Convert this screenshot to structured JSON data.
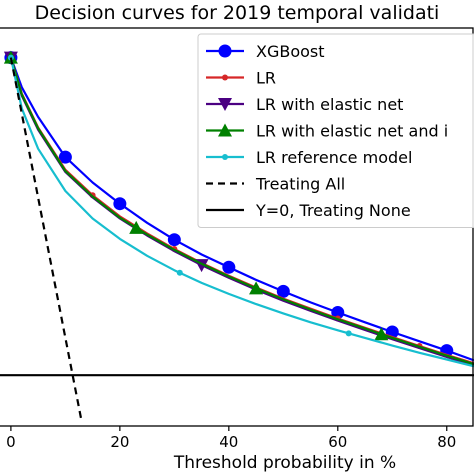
{
  "chart_data": {
    "type": "line",
    "title": "Decision curves for 2019 temporal validati",
    "xlabel": "Threshold probability in %",
    "ylabel": "",
    "xlim": [
      -2,
      85
    ],
    "ylim": [
      -0.012,
      0.082
    ],
    "x_ticks": [
      0,
      20,
      40,
      60,
      80
    ],
    "x_tick_labels": [
      "0",
      "20",
      "40",
      "60",
      "80"
    ],
    "legend_position": "top-right",
    "series": [
      {
        "name": "XGBoost",
        "color": "#0000ff",
        "marker": "circle",
        "marker_x": [
          0,
          10,
          20,
          30,
          40,
          50,
          60,
          70,
          80
        ],
        "x": [
          0,
          2,
          5,
          10,
          15,
          20,
          25,
          30,
          35,
          40,
          45,
          50,
          55,
          60,
          65,
          70,
          75,
          80,
          85
        ],
        "y": [
          0.075,
          0.068,
          0.061,
          0.0515,
          0.0455,
          0.0405,
          0.036,
          0.032,
          0.0285,
          0.0255,
          0.0225,
          0.0198,
          0.0172,
          0.0148,
          0.0125,
          0.0102,
          0.008,
          0.0058,
          0.0035
        ]
      },
      {
        "name": "LR",
        "color": "#d62728",
        "marker": "dot",
        "marker_x": [
          0,
          15,
          30,
          45,
          60,
          75
        ],
        "x": [
          0,
          2,
          5,
          10,
          15,
          20,
          25,
          30,
          35,
          40,
          45,
          50,
          55,
          60,
          65,
          70,
          75,
          80,
          85
        ],
        "y": [
          0.075,
          0.0665,
          0.0585,
          0.0485,
          0.0425,
          0.0375,
          0.0335,
          0.0298,
          0.0265,
          0.0235,
          0.0207,
          0.0181,
          0.0157,
          0.0134,
          0.0112,
          0.009,
          0.0069,
          0.0048,
          0.0028
        ]
      },
      {
        "name": "LR with elastic net",
        "color": "#4b0082",
        "marker": "triangle-down",
        "marker_x": [
          0,
          35
        ],
        "x": [
          0,
          2,
          5,
          10,
          15,
          20,
          25,
          30,
          35,
          40,
          45,
          50,
          55,
          60,
          65,
          70,
          75,
          80,
          85
        ],
        "y": [
          0.075,
          0.066,
          0.058,
          0.048,
          0.042,
          0.037,
          0.033,
          0.0293,
          0.026,
          0.023,
          0.0202,
          0.0176,
          0.0152,
          0.0129,
          0.0107,
          0.0085,
          0.0064,
          0.0043,
          0.0023
        ]
      },
      {
        "name": "LR with elastic net and i",
        "color": "#008000",
        "marker": "triangle-up",
        "marker_x": [
          0,
          23,
          45,
          68
        ],
        "x": [
          0,
          2,
          5,
          10,
          15,
          20,
          25,
          30,
          35,
          40,
          45,
          50,
          55,
          60,
          65,
          70,
          75,
          80,
          85
        ],
        "y": [
          0.075,
          0.0663,
          0.0583,
          0.0482,
          0.0422,
          0.0372,
          0.0332,
          0.0296,
          0.0263,
          0.0233,
          0.0205,
          0.0179,
          0.0155,
          0.0132,
          0.011,
          0.0088,
          0.0067,
          0.0046,
          0.0026
        ]
      },
      {
        "name": "LR reference model",
        "color": "#17becf",
        "marker": "dot",
        "marker_x": [
          0,
          31,
          62
        ],
        "x": [
          0,
          2,
          5,
          10,
          15,
          20,
          25,
          30,
          35,
          40,
          45,
          50,
          55,
          60,
          65,
          70,
          75,
          80,
          85
        ],
        "y": [
          0.075,
          0.063,
          0.0535,
          0.0435,
          0.037,
          0.0322,
          0.0282,
          0.0248,
          0.0218,
          0.0192,
          0.0168,
          0.0146,
          0.0125,
          0.0106,
          0.0088,
          0.007,
          0.0053,
          0.0037,
          0.0021
        ]
      },
      {
        "name": "Treating All",
        "color": "#000000",
        "marker": "none",
        "dash": true,
        "x": [
          0,
          13
        ],
        "y": [
          0.075,
          -0.011
        ]
      },
      {
        "name": "Y=0, Treating None",
        "color": "#000000",
        "marker": "none",
        "dash": false,
        "x": [
          -2,
          85
        ],
        "y": [
          0,
          0
        ]
      }
    ]
  }
}
